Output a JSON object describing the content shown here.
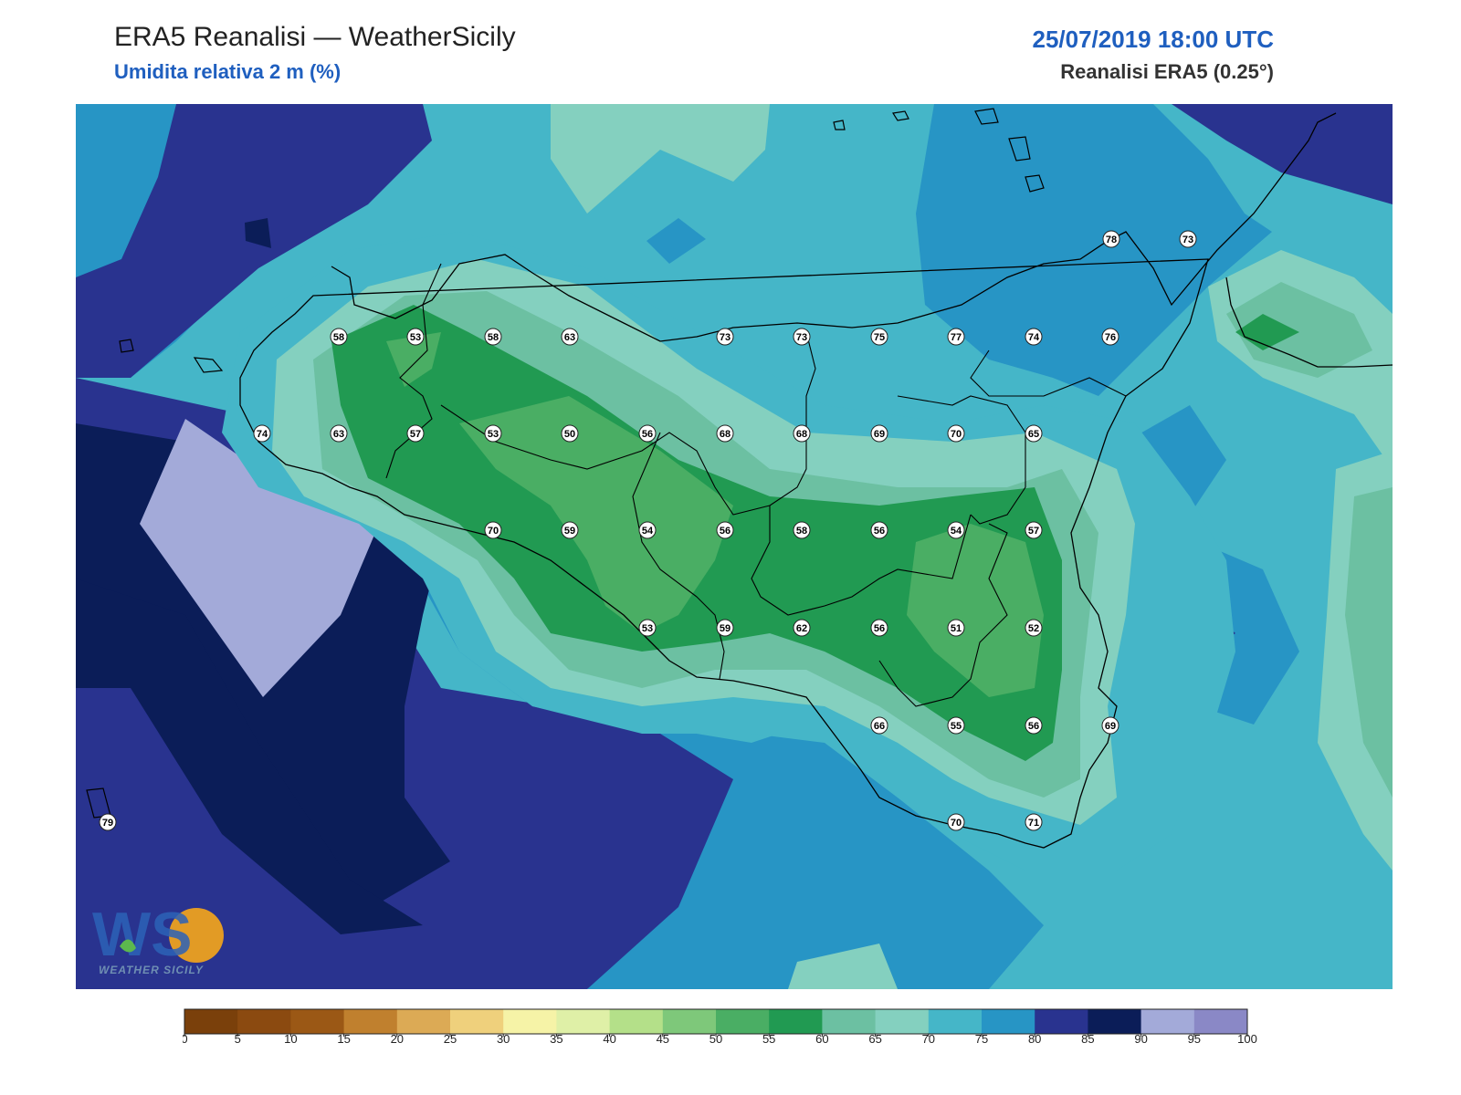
{
  "header": {
    "title": "ERA5 Reanalisi — WeatherSicily",
    "subtitle": "Umidita relativa 2 m (%)",
    "datetime": "25/07/2019 18:00 UTC",
    "source": "Reanalisi ERA5 (0.25°)"
  },
  "logo": {
    "text": "WEATHER SICILY",
    "initials": "WS"
  },
  "colorbar": {
    "ticks": [
      "0",
      "5",
      "10",
      "15",
      "20",
      "25",
      "30",
      "35",
      "40",
      "45",
      "50",
      "55",
      "60",
      "65",
      "70",
      "75",
      "80",
      "85",
      "90",
      "95",
      "100"
    ],
    "colors": [
      "#7a400b",
      "#8b4a10",
      "#9b5815",
      "#c0802e",
      "#dcaa55",
      "#efd07c",
      "#f6f3a7",
      "#dff0a7",
      "#b4e089",
      "#7ec87a",
      "#4aae64",
      "#219a52",
      "#6cc0a2",
      "#84d0bf",
      "#45b6c8",
      "#2795c5",
      "#29338f",
      "#0b1d58",
      "#a3aad9",
      "#8a88c6"
    ]
  },
  "stations": [
    {
      "value": "58"
    },
    {
      "value": "53"
    },
    {
      "value": "58"
    },
    {
      "value": "63"
    },
    {
      "value": "73"
    },
    {
      "value": "73"
    },
    {
      "value": "75"
    },
    {
      "value": "77"
    },
    {
      "value": "74"
    },
    {
      "value": "76"
    },
    {
      "value": "78"
    },
    {
      "value": "73"
    },
    {
      "value": "74"
    },
    {
      "value": "63"
    },
    {
      "value": "57"
    },
    {
      "value": "53"
    },
    {
      "value": "50"
    },
    {
      "value": "56"
    },
    {
      "value": "68"
    },
    {
      "value": "68"
    },
    {
      "value": "69"
    },
    {
      "value": "70"
    },
    {
      "value": "65"
    },
    {
      "value": "70"
    },
    {
      "value": "59"
    },
    {
      "value": "54"
    },
    {
      "value": "56"
    },
    {
      "value": "58"
    },
    {
      "value": "56"
    },
    {
      "value": "54"
    },
    {
      "value": "57"
    },
    {
      "value": "53"
    },
    {
      "value": "59"
    },
    {
      "value": "62"
    },
    {
      "value": "56"
    },
    {
      "value": "51"
    },
    {
      "value": "52"
    },
    {
      "value": "66"
    },
    {
      "value": "55"
    },
    {
      "value": "56"
    },
    {
      "value": "69"
    },
    {
      "value": "70"
    },
    {
      "value": "71"
    },
    {
      "value": "79"
    }
  ]
}
